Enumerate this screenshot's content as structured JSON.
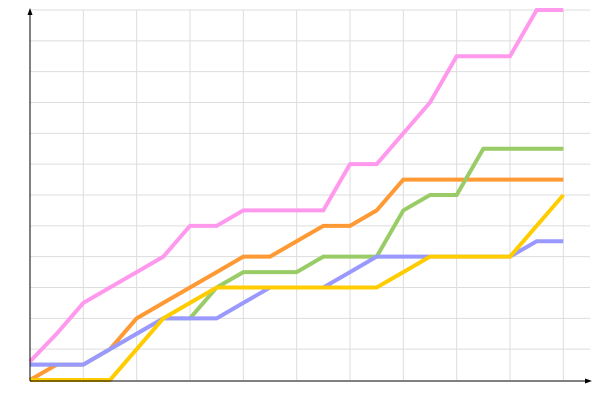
{
  "chart_data": {
    "type": "line",
    "x": [
      0,
      1,
      2,
      3,
      4,
      5,
      6,
      7,
      8,
      9,
      10,
      11,
      12,
      13,
      14,
      15,
      16,
      17,
      18,
      19,
      20
    ],
    "series": [
      {
        "color": "#ff99ee",
        "values": [
          0.6,
          1.5,
          2.5,
          3,
          3.5,
          4,
          5,
          5,
          5.5,
          5.5,
          5.5,
          5.5,
          7,
          7,
          8,
          9,
          10.5,
          10.5,
          10.5,
          12,
          12
        ]
      },
      {
        "color": "#ff9933",
        "values": [
          0,
          0.5,
          0.5,
          1,
          2,
          2.5,
          3,
          3.5,
          4,
          4,
          4.5,
          5,
          5,
          5.5,
          6.5,
          6.5,
          6.5,
          6.5,
          6.5,
          6.5,
          6.5
        ]
      },
      {
        "color": "#99cc66",
        "values": [
          0.5,
          0.5,
          0.5,
          1,
          1.5,
          2,
          2,
          3,
          3.5,
          3.5,
          3.5,
          4,
          4,
          4,
          5.5,
          6,
          6,
          7.5,
          7.5,
          7.5,
          7.5
        ]
      },
      {
        "color": "#9999ff",
        "values": [
          0.5,
          0.5,
          0.5,
          1,
          1.5,
          2,
          2,
          2,
          2.5,
          3,
          3,
          3,
          3.5,
          4,
          4,
          4,
          4,
          4,
          4,
          4.5,
          4.5
        ]
      },
      {
        "color": "#ffcc00",
        "values": [
          0,
          0,
          0,
          0,
          1,
          2,
          2.5,
          3,
          3,
          3,
          3,
          3,
          3,
          3,
          3.5,
          4,
          4,
          4,
          4,
          5,
          6
        ]
      }
    ],
    "xlim": [
      0,
      21
    ],
    "ylim": [
      0,
      12
    ],
    "xticks": [
      2,
      4,
      6,
      8,
      10,
      12,
      14,
      16,
      18,
      20
    ],
    "yticks": [
      1,
      2,
      3,
      4,
      5,
      6,
      7,
      8,
      9,
      10,
      11,
      12
    ],
    "grid": true
  }
}
